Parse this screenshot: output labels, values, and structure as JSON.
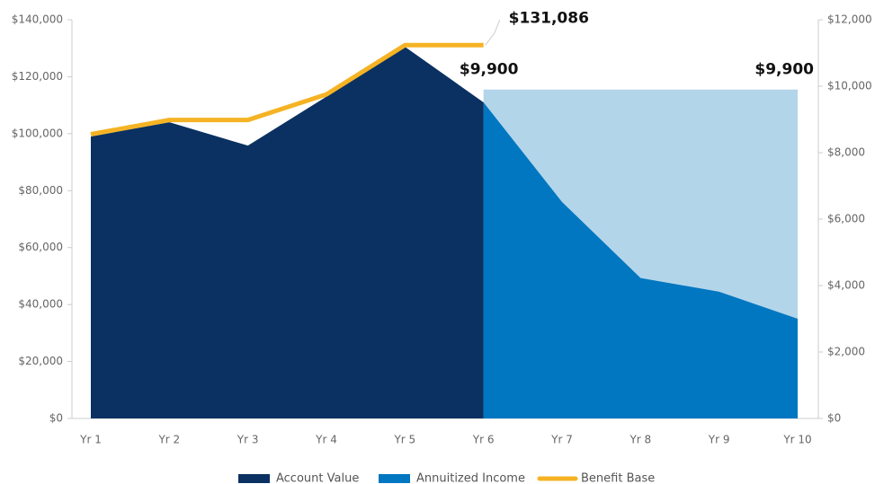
{
  "chart_data": {
    "type": "area",
    "categories": [
      "Yr 1",
      "Yr 2",
      "Yr 3",
      "Yr 4",
      "Yr 5",
      "Yr 6",
      "Yr 7",
      "Yr 8",
      "Yr 9",
      "Yr 10"
    ],
    "ylim": [
      0,
      140000
    ],
    "yticks": [
      {
        "value": 0,
        "label": "$0"
      },
      {
        "value": 20000,
        "label": "$20,000"
      },
      {
        "value": 40000,
        "label": "$40,000"
      },
      {
        "value": 60000,
        "label": "$60,000"
      },
      {
        "value": 80000,
        "label": "$80,000"
      },
      {
        "value": 100000,
        "label": "$100,000"
      },
      {
        "value": 120000,
        "label": "$120,000"
      },
      {
        "value": 140000,
        "label": "$140,000"
      }
    ],
    "y2lim": [
      0,
      12000
    ],
    "y2ticks": [
      {
        "value": 0,
        "label": "$0"
      },
      {
        "value": 2000,
        "label": "$2,000"
      },
      {
        "value": 4000,
        "label": "$4,000"
      },
      {
        "value": 6000,
        "label": "$6,000"
      },
      {
        "value": 8000,
        "label": "$8,000"
      },
      {
        "value": 10000,
        "label": "$10,000"
      },
      {
        "value": 12000,
        "label": "$12,000"
      }
    ],
    "series": [
      {
        "type": "area",
        "color": "#b3d5ea",
        "axis": "y2",
        "values": [
          null,
          null,
          null,
          null,
          null,
          9900,
          9900,
          9900,
          9900,
          9900
        ],
        "value_labels": [
          null,
          null,
          null,
          null,
          null,
          "$9,900",
          null,
          null,
          null,
          "$9,900"
        ]
      },
      {
        "name": "Annuitized Income",
        "type": "area",
        "color": "#0077c0",
        "values": [
          null,
          null,
          null,
          null,
          null,
          111000,
          76000,
          49300,
          44500,
          35000
        ]
      },
      {
        "name": "Account Value",
        "type": "area",
        "color": "#0a3161",
        "values": [
          99000,
          104000,
          95800,
          113000,
          130500,
          111000,
          null,
          null,
          null,
          null
        ]
      },
      {
        "name": "Benefit Base",
        "type": "line",
        "color": "#f5b324",
        "values": [
          99800,
          104800,
          104800,
          113800,
          131086,
          131086,
          null,
          null,
          null,
          null
        ],
        "value_labels": [
          null,
          null,
          null,
          null,
          null,
          "$131,086",
          null,
          null,
          null,
          null
        ]
      }
    ]
  }
}
